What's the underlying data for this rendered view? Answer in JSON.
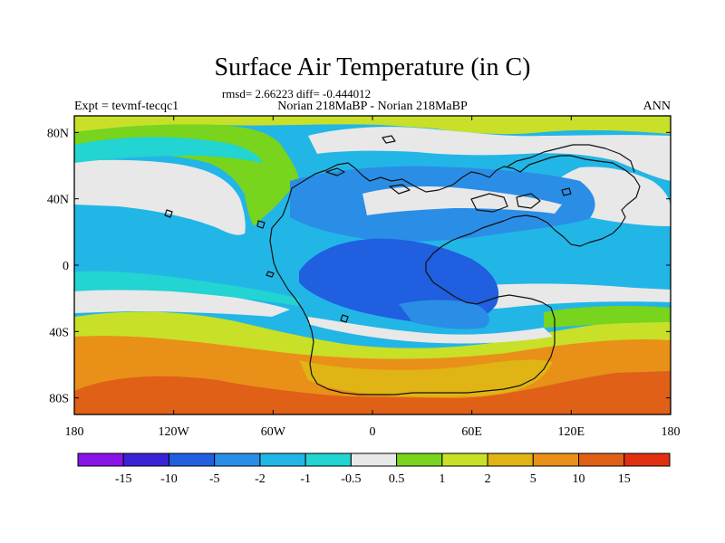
{
  "chart_data": {
    "type": "heatmap",
    "title": "Surface Air Temperature (in C)",
    "stats_line": "rmsd= 2.66223 diff= -0.444012",
    "left_label": "Expt = tevmf-tecqc1",
    "center_label": "Norian 218MaBP - Norian 218MaBP",
    "right_label": "ANN",
    "x_ticks": [
      {
        "value": -180,
        "label": "180"
      },
      {
        "value": -120,
        "label": "120W"
      },
      {
        "value": -60,
        "label": "60W"
      },
      {
        "value": 0,
        "label": "0"
      },
      {
        "value": 60,
        "label": "60E"
      },
      {
        "value": 120,
        "label": "120E"
      },
      {
        "value": 180,
        "label": "180"
      }
    ],
    "y_ticks": [
      {
        "value": 80,
        "label": "80N"
      },
      {
        "value": 40,
        "label": "40N"
      },
      {
        "value": 0,
        "label": "0"
      },
      {
        "value": -40,
        "label": "40S"
      },
      {
        "value": -80,
        "label": "80S"
      }
    ],
    "xlim": [
      -180,
      180
    ],
    "ylim": [
      -90,
      90
    ],
    "colorbar": {
      "colors": [
        "#8a14e8",
        "#3a22d6",
        "#1f5fe0",
        "#2a8ee6",
        "#22b6e6",
        "#22d4d2",
        "#e8e8e8",
        "#78d41c",
        "#c8e028",
        "#e0b414",
        "#e89018",
        "#e06018",
        "#e03010"
      ],
      "labels": [
        "-15",
        "-10",
        "-5",
        "-2",
        "-1",
        "-0.5",
        "0.5",
        "1",
        "2",
        "5",
        "10",
        "15"
      ]
    },
    "colors": {
      "ocean_base": "#22b6e6",
      "warm": "#e89018",
      "warmest": "#e06018",
      "orange": "#e0b414",
      "yellow_green": "#c8e028",
      "green": "#78d41c",
      "neutral": "#e8e8e8",
      "light_cyan": "#22d4d2",
      "light_blue": "#2a8ee6",
      "blue": "#1f5fe0"
    }
  }
}
